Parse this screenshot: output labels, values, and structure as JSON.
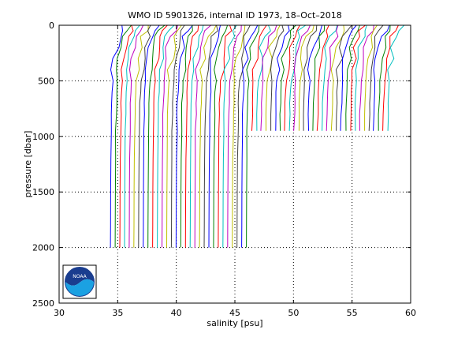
{
  "chart_data": {
    "type": "line",
    "title": "WMO ID 5901326, internal ID 1973, 18–Oct–2018",
    "xlabel": "salinity [psu]",
    "ylabel": "pressure [dbar]",
    "xlim": [
      30,
      60
    ],
    "ylim": [
      0,
      2500
    ],
    "y_reversed": true,
    "grid": true,
    "x_ticks": [
      "30",
      "35",
      "40",
      "45",
      "50",
      "55",
      "60"
    ],
    "y_ticks": [
      "0",
      "500",
      "1000",
      "1500",
      "2000",
      "2500"
    ],
    "x_tick_values": [
      30,
      35,
      40,
      45,
      50,
      55,
      60
    ],
    "y_tick_values": [
      0,
      500,
      1000,
      1500,
      2000,
      2500
    ],
    "series_description": "Waterfall of successive salinity profiles; each profile is offset by ~0.4 psu from the previous one. Deep profiles reach 2000 dbar; later profiles stop near 950 dbar.",
    "profiles": {
      "count": 60,
      "deep_count": 30,
      "first_offset": 34.7,
      "offset_step": 0.4,
      "deep_max_pressure": 2000,
      "shallow_max_pressure": 950,
      "colors": [
        "#0000ff",
        "#008000",
        "#ff0000",
        "#00bfbf",
        "#bf00bf",
        "#bfbf00",
        "#404040"
      ]
    },
    "logo": {
      "name": "noaa-logo",
      "text": "NOAA"
    }
  }
}
